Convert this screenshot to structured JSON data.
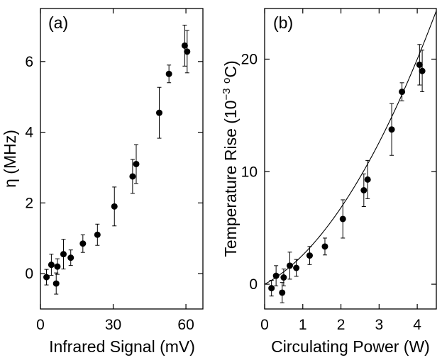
{
  "chart_data": [
    {
      "panel": "(a)",
      "type": "scatter",
      "xlabel": "Infrared Signal (mV)",
      "ylabel": "η (MHz)",
      "xlim": [
        0,
        67
      ],
      "ylim": [
        -1,
        7.5
      ],
      "xticks": [
        0,
        30,
        60
      ],
      "yticks": [
        0,
        2,
        4,
        6
      ],
      "grid": false,
      "error_bars": true,
      "points": [
        {
          "x": 2.5,
          "y": -0.1,
          "err": 0.22
        },
        {
          "x": 4.5,
          "y": 0.25,
          "err": 0.3
        },
        {
          "x": 6.5,
          "y": -0.28,
          "err": 0.3
        },
        {
          "x": 7.0,
          "y": 0.2,
          "err": 0.22
        },
        {
          "x": 9.5,
          "y": 0.55,
          "err": 0.42
        },
        {
          "x": 12.5,
          "y": 0.45,
          "err": 0.22
        },
        {
          "x": 17.5,
          "y": 0.85,
          "err": 0.25
        },
        {
          "x": 23.5,
          "y": 1.1,
          "err": 0.3
        },
        {
          "x": 30.5,
          "y": 1.9,
          "err": 0.55
        },
        {
          "x": 38.0,
          "y": 2.75,
          "err": 0.48
        },
        {
          "x": 39.5,
          "y": 3.1,
          "err": 0.55
        },
        {
          "x": 49.0,
          "y": 4.55,
          "err": 0.72
        },
        {
          "x": 53.0,
          "y": 5.65,
          "err": 0.25
        },
        {
          "x": 59.5,
          "y": 6.45,
          "err": 0.58
        },
        {
          "x": 60.5,
          "y": 6.28,
          "err": 0.6
        }
      ]
    },
    {
      "panel": "(b)",
      "type": "scatter",
      "xlabel": "Circulating Power (W)",
      "ylabel": "Temperature Rise (10⁻³ °C)",
      "ylabel_parts": {
        "pre": "Temperature Rise (10",
        "exp1": "−3",
        "mid": " ",
        "exp2": "o",
        "post": "C)"
      },
      "xlim": [
        0,
        4.5
      ],
      "ylim": [
        -2.2,
        24.5
      ],
      "xticks": [
        0,
        1,
        2,
        3,
        4
      ],
      "yticks": [
        0,
        10,
        20
      ],
      "grid": false,
      "error_bars": true,
      "fit_curve": {
        "type": "quadratic",
        "coeffs": [
          0,
          1.8,
          0.8
        ]
      },
      "points": [
        {
          "x": 0.18,
          "y": -0.35,
          "err": 0.7
        },
        {
          "x": 0.3,
          "y": 0.75,
          "err": 0.9
        },
        {
          "x": 0.46,
          "y": -0.75,
          "err": 0.9
        },
        {
          "x": 0.5,
          "y": 0.6,
          "err": 0.75
        },
        {
          "x": 0.66,
          "y": 1.65,
          "err": 1.2
        },
        {
          "x": 0.83,
          "y": 1.45,
          "err": 0.75
        },
        {
          "x": 1.18,
          "y": 2.55,
          "err": 0.8
        },
        {
          "x": 1.58,
          "y": 3.35,
          "err": 0.75
        },
        {
          "x": 2.05,
          "y": 5.8,
          "err": 1.7
        },
        {
          "x": 2.6,
          "y": 8.35,
          "err": 1.45
        },
        {
          "x": 2.7,
          "y": 9.3,
          "err": 1.7
        },
        {
          "x": 3.33,
          "y": 13.75,
          "err": 2.3
        },
        {
          "x": 3.6,
          "y": 17.1,
          "err": 0.8
        },
        {
          "x": 4.06,
          "y": 19.5,
          "err": 1.8
        },
        {
          "x": 4.13,
          "y": 18.95,
          "err": 1.85
        }
      ]
    }
  ]
}
